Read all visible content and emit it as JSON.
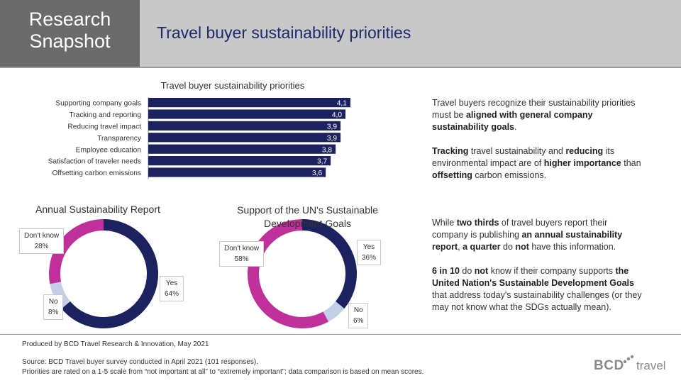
{
  "header": {
    "label": "Research Snapshot",
    "title": "Travel buyer sustainability priorities"
  },
  "chart_data": [
    {
      "type": "bar",
      "orientation": "horizontal",
      "title": "Travel buyer sustainability priorities",
      "categories": [
        "Supporting company goals",
        "Tracking and reporting",
        "Reducing travel impact",
        "Transparency",
        "Employee education",
        "Satisfaction of traveler needs",
        "Offsetting carbon emissions"
      ],
      "values": [
        4.1,
        4.0,
        3.9,
        3.9,
        3.8,
        3.7,
        3.6
      ],
      "value_labels": [
        "4,1",
        "4,0",
        "3,9",
        "3,9",
        "3,8",
        "3,7",
        "3,6"
      ],
      "color": "#1c2260"
    },
    {
      "type": "pie",
      "subtype": "donut",
      "title": "Annual Sustainability Report",
      "slices": [
        {
          "name": "Yes",
          "value": 64,
          "label": "64%",
          "color": "#1c2260"
        },
        {
          "name": "No",
          "value": 8,
          "label": "8%",
          "color": "#c3cfe6"
        },
        {
          "name": "Don't know",
          "value": 28,
          "label": "28%",
          "color": "#c0309a"
        }
      ]
    },
    {
      "type": "pie",
      "subtype": "donut",
      "title": "Support of the UN's Sustainable Development Goals",
      "title_lines": [
        "Support of the UN's Sustainable",
        "Development Goals"
      ],
      "slices": [
        {
          "name": "Yes",
          "value": 36,
          "label": "36%",
          "color": "#1c2260"
        },
        {
          "name": "No",
          "value": 6,
          "label": "6%",
          "color": "#c3cfe6"
        },
        {
          "name": "Don't know",
          "value": 58,
          "label": "58%",
          "color": "#c0309a"
        }
      ]
    }
  ],
  "text": {
    "p1": [
      {
        "t": "Travel buyers recognize their sustainability priorities must be ",
        "b": false
      },
      {
        "t": "aligned with general company sustainability goals",
        "b": true
      },
      {
        "t": ".",
        "b": false
      }
    ],
    "p2": [
      {
        "t": "Tracking",
        "b": true
      },
      {
        "t": " travel sustainability and ",
        "b": false
      },
      {
        "t": "reducing",
        "b": true
      },
      {
        "t": " its environmental impact are of ",
        "b": false
      },
      {
        "t": "higher importance",
        "b": true
      },
      {
        "t": " than ",
        "b": false
      },
      {
        "t": "offsetting",
        "b": true
      },
      {
        "t": " carbon emissions.",
        "b": false
      }
    ],
    "p3": [
      {
        "t": "While ",
        "b": false
      },
      {
        "t": "two thirds",
        "b": true
      },
      {
        "t": " of travel buyers report their company is publishing ",
        "b": false
      },
      {
        "t": "an annual sustainability report",
        "b": true
      },
      {
        "t": ", ",
        "b": false
      },
      {
        "t": "a quarter",
        "b": true
      },
      {
        "t": " do ",
        "b": false
      },
      {
        "t": "not",
        "b": true
      },
      {
        "t": " have this information.",
        "b": false
      }
    ],
    "p4": [
      {
        "t": "6 in 10",
        "b": true
      },
      {
        "t": " do ",
        "b": false
      },
      {
        "t": "not",
        "b": true
      },
      {
        "t": " know if their company supports ",
        "b": false
      },
      {
        "t": "the United Nation's Sustainable Development Goals",
        "b": true
      },
      {
        "t": " that address today's sustainability  challenges (or they may not know what the SDGs actually mean).",
        "b": false
      }
    ]
  },
  "footer": {
    "produced": "Produced by BCD Travel Research & Innovation, May 2021",
    "source": "Source: BCD Travel buyer survey conducted in April 2021 (101 responses).",
    "note": "Priorities are rated on a 1-5 scale from “not important at all” to “extremely important”; data comparison is based on mean scores."
  },
  "logo": {
    "brand": "BCD",
    "suffix": "travel"
  }
}
